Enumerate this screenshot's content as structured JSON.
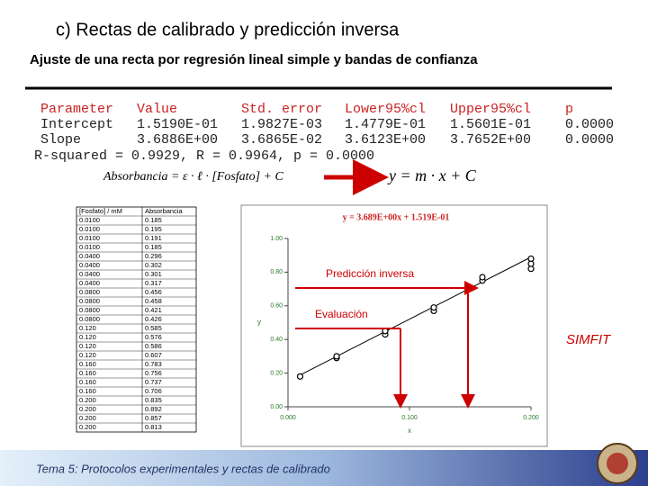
{
  "title": "c) Rectas de calibrado y predicción inversa",
  "subtitle": "Ajuste de una recta por regresión lineal simple y bandas de confianza",
  "results": {
    "header": [
      "Parameter",
      "Value",
      "Std. error",
      "Lower95%cl",
      "Upper95%cl",
      "p"
    ],
    "rows": [
      [
        "Intercept",
        "1.5190E-01",
        "1.9827E-03",
        "1.4779E-01",
        "1.5601E-01",
        "0.0000"
      ],
      [
        "Slope",
        "3.6886E+00",
        "3.6865E-02",
        "3.6123E+00",
        "3.7652E+00",
        "0.0000"
      ]
    ],
    "summary": "R-squared = 0.9929, R = 0.9964, p = 0.0000"
  },
  "equations": {
    "left": "Absorbancia = ε · ℓ · [Fosfato] + C",
    "right": "y = m · x + C"
  },
  "data_table": {
    "header": [
      "[Fosfato] / mM",
      "Absorbancia"
    ],
    "rows": [
      [
        "0.0100",
        "0.185"
      ],
      [
        "0.0100",
        "0.195"
      ],
      [
        "0.0100",
        "0.191"
      ],
      [
        "0.0100",
        "0.185"
      ],
      [
        "0.0400",
        "0.296"
      ],
      [
        "0.0400",
        "0.302"
      ],
      [
        "0.0400",
        "0.301"
      ],
      [
        "0.0400",
        "0.317"
      ],
      [
        "0.0800",
        "0.456"
      ],
      [
        "0.0800",
        "0.458"
      ],
      [
        "0.0800",
        "0.421"
      ],
      [
        "0.0800",
        "0.426"
      ],
      [
        "0.120",
        "0.585"
      ],
      [
        "0.120",
        "0.576"
      ],
      [
        "0.120",
        "0.586"
      ],
      [
        "0.120",
        "0.607"
      ],
      [
        "0.160",
        "0.783"
      ],
      [
        "0.160",
        "0.756"
      ],
      [
        "0.160",
        "0.737"
      ],
      [
        "0.160",
        "0.706"
      ],
      [
        "0.200",
        "0.835"
      ],
      [
        "0.200",
        "0.892"
      ],
      [
        "0.200",
        "0.857"
      ],
      [
        "0.200",
        "0.813"
      ]
    ]
  },
  "chart": {
    "type": "scatter",
    "title": "y = 3.689E+00x + 1.519E-01",
    "xlabel": "x",
    "ylabel": "y",
    "xlim": [
      0,
      0.2
    ],
    "ylim": [
      0,
      1
    ],
    "xticks": [
      {
        "value": 0,
        "label": "0.000"
      },
      {
        "value": 0.1,
        "label": "0.100"
      },
      {
        "value": 0.2,
        "label": "0.200"
      }
    ],
    "yticks": [
      {
        "value": 0,
        "label": "0.00"
      },
      {
        "value": 0.2,
        "label": "0.20"
      },
      {
        "value": 0.4,
        "label": "0.40"
      },
      {
        "value": 0.6,
        "label": "0.60"
      },
      {
        "value": 0.8,
        "label": "0.80"
      },
      {
        "value": 1,
        "label": "1.00"
      }
    ],
    "points": {
      "x": [
        0.01,
        0.04,
        0.04,
        0.08,
        0.08,
        0.12,
        0.12,
        0.16,
        0.16,
        0.2,
        0.2,
        0.2
      ],
      "y": [
        0.18,
        0.29,
        0.3,
        0.43,
        0.45,
        0.57,
        0.59,
        0.75,
        0.77,
        0.82,
        0.85,
        0.88
      ]
    },
    "fit_line": {
      "x": [
        0.01,
        0.2
      ],
      "y": [
        0.1888,
        0.8897
      ]
    },
    "point_color": "#000000",
    "line_color": "#000000",
    "annotations": {
      "inverse": "Predicción inversa",
      "evaluation": "Evaluación"
    }
  },
  "brand": "SIMFIT",
  "footer": "Tema 5: Protocolos experimentales y rectas de calibrado"
}
